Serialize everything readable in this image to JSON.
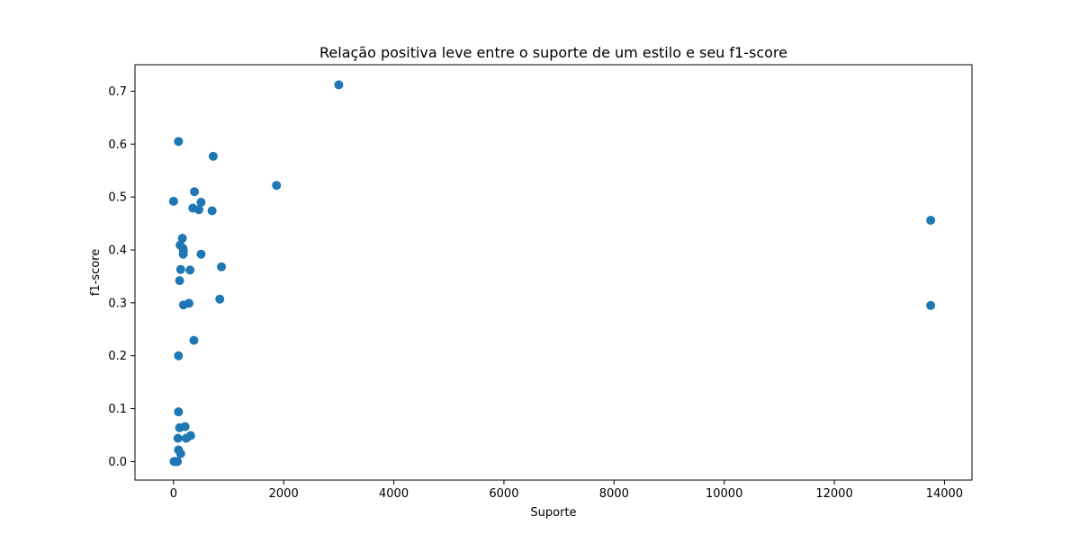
{
  "chart_data": {
    "type": "scatter",
    "title": "Relação positiva leve entre o suporte de um estilo e seu f1-score",
    "xlabel": "Suporte",
    "ylabel": "f1-score",
    "xlim": [
      -700,
      14500
    ],
    "ylim": [
      -0.035,
      0.75
    ],
    "xticks": [
      0,
      2000,
      4000,
      6000,
      8000,
      10000,
      12000,
      14000
    ],
    "yticks": [
      0.0,
      0.1,
      0.2,
      0.3,
      0.4,
      0.5,
      0.6,
      0.7
    ],
    "xtick_labels": [
      "0",
      "2000",
      "4000",
      "6000",
      "8000",
      "10000",
      "12000",
      "14000"
    ],
    "ytick_labels": [
      "0.0",
      "0.1",
      "0.2",
      "0.3",
      "0.4",
      "0.5",
      "0.6",
      "0.7"
    ],
    "grid": false,
    "marker_color": "#1f77b4",
    "points": [
      {
        "x": 3000,
        "y": 0.712
      },
      {
        "x": 90,
        "y": 0.605
      },
      {
        "x": 720,
        "y": 0.577
      },
      {
        "x": 1870,
        "y": 0.522
      },
      {
        "x": 380,
        "y": 0.51
      },
      {
        "x": 0,
        "y": 0.492
      },
      {
        "x": 500,
        "y": 0.49
      },
      {
        "x": 350,
        "y": 0.479
      },
      {
        "x": 460,
        "y": 0.476
      },
      {
        "x": 700,
        "y": 0.474
      },
      {
        "x": 13750,
        "y": 0.456
      },
      {
        "x": 160,
        "y": 0.422
      },
      {
        "x": 120,
        "y": 0.409
      },
      {
        "x": 170,
        "y": 0.403
      },
      {
        "x": 180,
        "y": 0.398
      },
      {
        "x": 500,
        "y": 0.392
      },
      {
        "x": 175,
        "y": 0.392
      },
      {
        "x": 870,
        "y": 0.368
      },
      {
        "x": 130,
        "y": 0.363
      },
      {
        "x": 300,
        "y": 0.362
      },
      {
        "x": 110,
        "y": 0.342
      },
      {
        "x": 840,
        "y": 0.307
      },
      {
        "x": 280,
        "y": 0.299
      },
      {
        "x": 180,
        "y": 0.296
      },
      {
        "x": 13750,
        "y": 0.295
      },
      {
        "x": 370,
        "y": 0.229
      },
      {
        "x": 90,
        "y": 0.2
      },
      {
        "x": 90,
        "y": 0.094
      },
      {
        "x": 210,
        "y": 0.066
      },
      {
        "x": 110,
        "y": 0.064
      },
      {
        "x": 310,
        "y": 0.049
      },
      {
        "x": 80,
        "y": 0.044
      },
      {
        "x": 230,
        "y": 0.044
      },
      {
        "x": 90,
        "y": 0.022
      },
      {
        "x": 130,
        "y": 0.015
      },
      {
        "x": 10,
        "y": 0.0
      },
      {
        "x": 40,
        "y": 0.0
      },
      {
        "x": 70,
        "y": 0.0
      }
    ]
  }
}
